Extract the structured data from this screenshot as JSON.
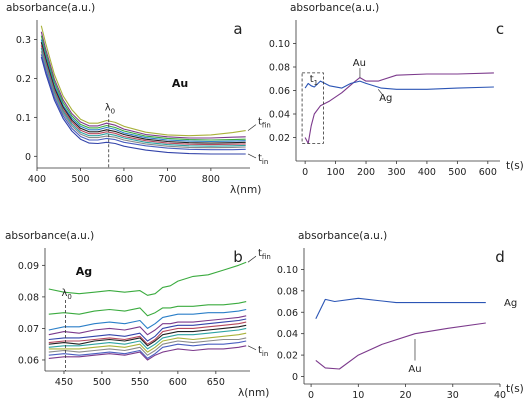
{
  "chart_data": [
    {
      "panel": "a",
      "type": "line",
      "ylabel": "absorbance(a.u.)",
      "xlabel": "λ(nm)",
      "title": "Au",
      "xlim": [
        400,
        890
      ],
      "ylim": [
        -0.03,
        0.35
      ],
      "xticks": [
        "400",
        "500",
        "600",
        "700",
        "800"
      ],
      "yticks": [
        "0",
        "0.1",
        "0.2",
        "0.3"
      ],
      "annotations": {
        "lambda": "λ",
        "lambda_sub": "0",
        "lambda_x": 565,
        "top": "t",
        "top_sub": "fin",
        "bottom": "t",
        "bottom_sub": "in"
      },
      "x": [
        410,
        420,
        440,
        460,
        480,
        500,
        520,
        540,
        560,
        580,
        600,
        650,
        700,
        750,
        800,
        850,
        880
      ],
      "series": [
        {
          "color": "#a9b23a",
          "values": [
            0.335,
            0.29,
            0.21,
            0.155,
            0.12,
            0.095,
            0.085,
            0.085,
            0.092,
            0.087,
            0.077,
            0.062,
            0.055,
            0.053,
            0.055,
            0.061,
            0.066
          ]
        },
        {
          "color": "#7c3a8c",
          "values": [
            0.32,
            0.275,
            0.198,
            0.145,
            0.11,
            0.088,
            0.078,
            0.078,
            0.085,
            0.08,
            0.07,
            0.056,
            0.05,
            0.047,
            0.047,
            0.049,
            0.05
          ]
        },
        {
          "color": "#3bab3f",
          "values": [
            0.31,
            0.265,
            0.19,
            0.138,
            0.104,
            0.082,
            0.073,
            0.073,
            0.079,
            0.074,
            0.065,
            0.052,
            0.046,
            0.043,
            0.042,
            0.043,
            0.044
          ]
        },
        {
          "color": "#2b7fc8",
          "values": [
            0.3,
            0.257,
            0.182,
            0.131,
            0.098,
            0.077,
            0.068,
            0.068,
            0.074,
            0.069,
            0.06,
            0.048,
            0.042,
            0.039,
            0.038,
            0.039,
            0.04
          ]
        },
        {
          "color": "#222222",
          "values": [
            0.293,
            0.25,
            0.176,
            0.126,
            0.093,
            0.072,
            0.063,
            0.063,
            0.068,
            0.064,
            0.056,
            0.044,
            0.038,
            0.035,
            0.034,
            0.035,
            0.036
          ]
        },
        {
          "color": "#b5485d",
          "values": [
            0.285,
            0.243,
            0.17,
            0.12,
            0.088,
            0.067,
            0.058,
            0.058,
            0.063,
            0.059,
            0.051,
            0.04,
            0.034,
            0.031,
            0.03,
            0.031,
            0.032
          ]
        },
        {
          "color": "#2ea3a3",
          "values": [
            0.278,
            0.236,
            0.164,
            0.115,
            0.083,
            0.062,
            0.053,
            0.053,
            0.058,
            0.054,
            0.047,
            0.036,
            0.03,
            0.027,
            0.026,
            0.027,
            0.028
          ]
        },
        {
          "color": "#8a8a8a",
          "values": [
            0.27,
            0.229,
            0.158,
            0.11,
            0.078,
            0.057,
            0.048,
            0.048,
            0.052,
            0.049,
            0.042,
            0.032,
            0.026,
            0.023,
            0.022,
            0.023,
            0.024
          ]
        },
        {
          "color": "#4a5fc0",
          "values": [
            0.262,
            0.221,
            0.151,
            0.104,
            0.072,
            0.051,
            0.042,
            0.042,
            0.046,
            0.043,
            0.036,
            0.027,
            0.021,
            0.018,
            0.017,
            0.017,
            0.018
          ]
        },
        {
          "color": "#3344aa",
          "values": [
            0.255,
            0.213,
            0.144,
            0.097,
            0.065,
            0.044,
            0.034,
            0.033,
            0.036,
            0.033,
            0.026,
            0.016,
            0.01,
            0.007,
            0.006,
            0.006,
            0.006
          ]
        }
      ]
    },
    {
      "panel": "b",
      "type": "line",
      "ylabel": "absorbance(a.u.)",
      "xlabel": "λ(nm)",
      "title": "Ag",
      "xlim": [
        425,
        695
      ],
      "ylim": [
        0.0565,
        0.0955
      ],
      "xticks": [
        "450",
        "500",
        "550",
        "600",
        "650"
      ],
      "yticks": [
        "0.06",
        "0.07",
        "0.08",
        "0.09"
      ],
      "annotations": {
        "lambda": "λ",
        "lambda_sub": "0",
        "lambda_x": 452,
        "top": "t",
        "top_sub": "fin",
        "bottom": "t",
        "bottom_sub": "in"
      },
      "x": [
        430,
        450,
        470,
        490,
        510,
        530,
        550,
        560,
        570,
        580,
        590,
        600,
        620,
        640,
        660,
        680,
        690
      ],
      "series": [
        {
          "color": "#3bab3f",
          "values": [
            0.0825,
            0.0815,
            0.081,
            0.0815,
            0.082,
            0.0815,
            0.082,
            0.0805,
            0.081,
            0.083,
            0.0835,
            0.085,
            0.0865,
            0.087,
            0.0885,
            0.09,
            0.091
          ]
        },
        {
          "color": "#3bab3f",
          "values": [
            0.0745,
            0.075,
            0.0745,
            0.0755,
            0.076,
            0.0755,
            0.0765,
            0.074,
            0.075,
            0.0765,
            0.0765,
            0.077,
            0.077,
            0.0775,
            0.0775,
            0.078,
            0.0785
          ]
        },
        {
          "color": "#2b7fc8",
          "values": [
            0.0695,
            0.0705,
            0.0705,
            0.0715,
            0.072,
            0.0715,
            0.0725,
            0.07,
            0.0715,
            0.0735,
            0.074,
            0.0745,
            0.0745,
            0.075,
            0.075,
            0.0755,
            0.076
          ]
        },
        {
          "color": "#7c3a8c",
          "values": [
            0.068,
            0.069,
            0.0685,
            0.0695,
            0.07,
            0.0695,
            0.0705,
            0.068,
            0.0695,
            0.0715,
            0.0715,
            0.072,
            0.072,
            0.0725,
            0.073,
            0.0735,
            0.074
          ]
        },
        {
          "color": "#3344aa",
          "values": [
            0.0665,
            0.067,
            0.067,
            0.0675,
            0.068,
            0.0675,
            0.0685,
            0.066,
            0.0675,
            0.07,
            0.0705,
            0.071,
            0.071,
            0.0715,
            0.072,
            0.0725,
            0.073
          ]
        },
        {
          "color": "#b5485d",
          "values": [
            0.0655,
            0.066,
            0.066,
            0.0665,
            0.067,
            0.0665,
            0.0675,
            0.065,
            0.0665,
            0.069,
            0.0695,
            0.07,
            0.07,
            0.0705,
            0.071,
            0.0715,
            0.072
          ]
        },
        {
          "color": "#222222",
          "values": [
            0.065,
            0.0655,
            0.065,
            0.066,
            0.0665,
            0.066,
            0.067,
            0.0645,
            0.066,
            0.068,
            0.0685,
            0.069,
            0.069,
            0.0695,
            0.07,
            0.0705,
            0.071
          ]
        },
        {
          "color": "#2ea3a3",
          "values": [
            0.064,
            0.0645,
            0.0645,
            0.065,
            0.0655,
            0.065,
            0.066,
            0.0635,
            0.065,
            0.067,
            0.0675,
            0.068,
            0.068,
            0.0685,
            0.069,
            0.0695,
            0.07
          ]
        },
        {
          "color": "#a9b23a",
          "values": [
            0.0635,
            0.0635,
            0.0635,
            0.064,
            0.0645,
            0.064,
            0.065,
            0.0625,
            0.064,
            0.066,
            0.0665,
            0.067,
            0.0665,
            0.067,
            0.0675,
            0.068,
            0.0685
          ]
        },
        {
          "color": "#8a8a8a",
          "values": [
            0.0625,
            0.063,
            0.0625,
            0.063,
            0.0635,
            0.063,
            0.064,
            0.0615,
            0.063,
            0.065,
            0.0655,
            0.066,
            0.0655,
            0.066,
            0.0665,
            0.0665,
            0.067
          ]
        },
        {
          "color": "#4a5fc0",
          "values": [
            0.0615,
            0.062,
            0.0615,
            0.062,
            0.0625,
            0.062,
            0.063,
            0.0605,
            0.062,
            0.064,
            0.0645,
            0.065,
            0.0645,
            0.065,
            0.065,
            0.0655,
            0.066
          ]
        },
        {
          "color": "#7c3a8c",
          "values": [
            0.0605,
            0.061,
            0.061,
            0.0615,
            0.062,
            0.0615,
            0.0625,
            0.06,
            0.0615,
            0.0625,
            0.063,
            0.0635,
            0.063,
            0.0635,
            0.0635,
            0.064,
            0.0645
          ]
        }
      ]
    },
    {
      "panel": "c",
      "type": "line",
      "ylabel": "absorbance(a.u.)",
      "xlabel": "t(s)",
      "xlim": [
        -30,
        640
      ],
      "ylim": [
        0.0,
        0.12
      ],
      "xticks": [
        "0",
        "100",
        "200",
        "300",
        "400",
        "500",
        "600"
      ],
      "yticks": [
        "0.10",
        "0.08",
        "0.06",
        "0.04",
        "0.02"
      ],
      "annotations": {
        "box": "t",
        "box_sub": "1",
        "box_t": [
          -10,
          60
        ],
        "box_abs": [
          0.015,
          0.075
        ]
      },
      "series": [
        {
          "name": "Au",
          "color": "#7c3a8c",
          "x": [
            0,
            10,
            20,
            30,
            50,
            80,
            120,
            160,
            180,
            200,
            240,
            300,
            400,
            500,
            620
          ],
          "values": [
            0.02,
            0.015,
            0.03,
            0.04,
            0.047,
            0.051,
            0.058,
            0.067,
            0.071,
            0.068,
            0.068,
            0.073,
            0.074,
            0.074,
            0.075
          ]
        },
        {
          "name": "Ag",
          "color": "#2b55b5",
          "x": [
            0,
            10,
            20,
            30,
            50,
            80,
            120,
            150,
            180,
            200,
            250,
            300,
            400,
            500,
            620
          ],
          "values": [
            0.062,
            0.066,
            0.064,
            0.063,
            0.068,
            0.064,
            0.062,
            0.066,
            0.068,
            0.066,
            0.062,
            0.061,
            0.061,
            0.062,
            0.063
          ]
        }
      ]
    },
    {
      "panel": "d",
      "type": "line",
      "ylabel": "absorbance(a.u.)",
      "xlabel": "t(s)",
      "xlim": [
        -1.5,
        40
      ],
      "ylim": [
        -0.007,
        0.12
      ],
      "xticks": [
        "0",
        "10",
        "20",
        "30",
        "40"
      ],
      "yticks": [
        "0.10",
        "0.08",
        "0.06",
        "0.04",
        "0.02",
        "0"
      ],
      "series": [
        {
          "name": "Ag",
          "color": "#2b55b5",
          "x": [
            1,
            3,
            5,
            10,
            18,
            28,
            37
          ],
          "values": [
            0.054,
            0.072,
            0.07,
            0.073,
            0.069,
            0.069,
            0.069
          ]
        },
        {
          "name": "Au",
          "color": "#7c3a8c",
          "x": [
            1,
            3,
            6,
            10,
            15,
            22,
            29,
            37
          ],
          "values": [
            0.015,
            0.008,
            0.007,
            0.02,
            0.03,
            0.04,
            0.045,
            0.05
          ]
        }
      ]
    }
  ]
}
